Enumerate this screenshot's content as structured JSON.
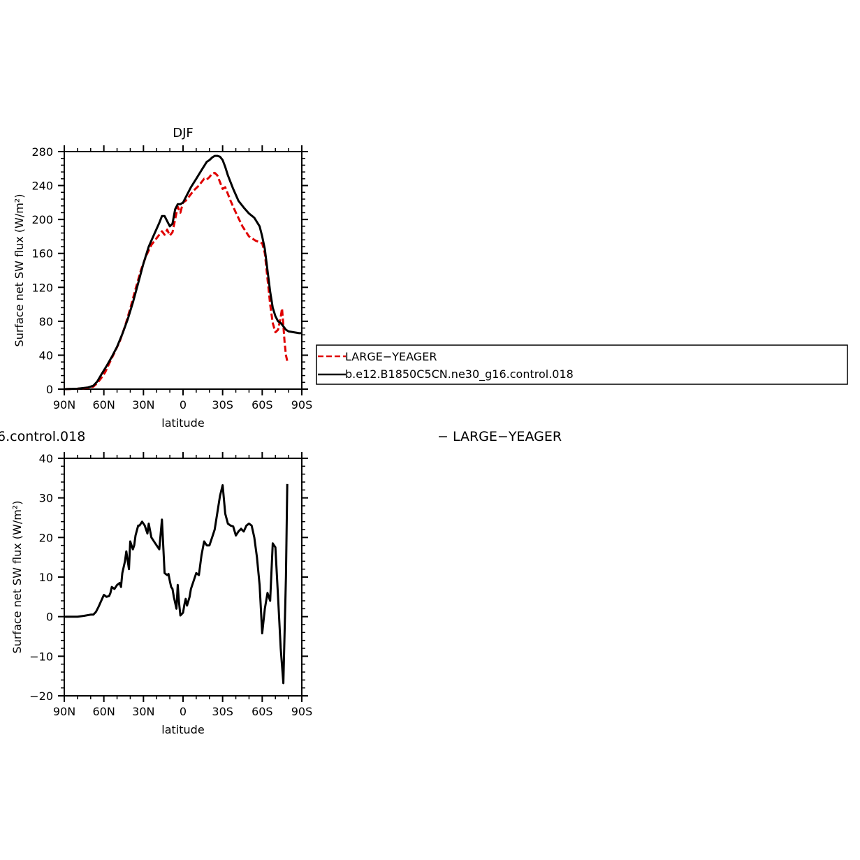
{
  "chart_data": [
    {
      "type": "line",
      "title": "DJF",
      "xlabel": "latitude",
      "ylabel": "Surface net SW flux (W/m²)",
      "xlim": [
        90,
        -90
      ],
      "ylim": [
        0,
        280
      ],
      "xticks": [
        {
          "value": 90,
          "label": "90N"
        },
        {
          "value": 60,
          "label": "60N"
        },
        {
          "value": 30,
          "label": "30N"
        },
        {
          "value": 0,
          "label": "0"
        },
        {
          "value": -30,
          "label": "30S"
        },
        {
          "value": -60,
          "label": "60S"
        },
        {
          "value": -90,
          "label": "90S"
        }
      ],
      "yticks": [
        0,
        40,
        80,
        120,
        160,
        200,
        240,
        280
      ],
      "legend_position": "right",
      "series": [
        {
          "name": "LARGE−YEAGER",
          "color": "#e00000",
          "dash": "dashed",
          "x": [
            90,
            80,
            72,
            68,
            65,
            62,
            59,
            56,
            52,
            48,
            44,
            40,
            36,
            32,
            28,
            24,
            20,
            16,
            14,
            12,
            10,
            8,
            6,
            4,
            2,
            0,
            -2,
            -4,
            -8,
            -12,
            -16,
            -18,
            -20,
            -22,
            -24,
            -26,
            -28,
            -30,
            -32,
            -34,
            -36,
            -40,
            -45,
            -50,
            -55,
            -60,
            -62,
            -64,
            -66,
            -68,
            -70,
            -72,
            -74,
            -75,
            -76,
            -77,
            -78,
            -79
          ],
          "y": [
            0,
            0.5,
            1.5,
            3,
            7,
            13,
            20,
            30,
            43,
            56,
            74,
            95,
            118,
            140,
            157,
            170,
            178,
            186,
            182,
            188,
            181,
            185,
            200,
            215,
            208,
            220,
            222,
            226,
            234,
            240,
            248,
            247,
            250,
            254,
            255,
            252,
            244,
            236,
            238,
            230,
            222,
            208,
            192,
            180,
            175,
            172,
            160,
            130,
            100,
            78,
            67,
            70,
            85,
            95,
            75,
            55,
            40,
            33
          ]
        },
        {
          "name": "b.e12.B1850C5CN.ne30_g16.control.018",
          "color": "#000000",
          "dash": "solid",
          "x": [
            90,
            80,
            72,
            68,
            65,
            62,
            58,
            54,
            50,
            46,
            42,
            38,
            34,
            30,
            26,
            22,
            18,
            16,
            14,
            12,
            10,
            8,
            6,
            4,
            2,
            0,
            -2,
            -6,
            -10,
            -14,
            -18,
            -20,
            -22,
            -24,
            -26,
            -28,
            -30,
            -32,
            -34,
            -38,
            -42,
            -46,
            -50,
            -54,
            -58,
            -60,
            -62,
            -64,
            -66,
            -68,
            -70,
            -72,
            -74,
            -76,
            -78,
            -80,
            -84,
            -88,
            -90
          ],
          "y": [
            0,
            0.5,
            2,
            4,
            9,
            17,
            27,
            38,
            50,
            65,
            82,
            102,
            125,
            148,
            168,
            182,
            196,
            204,
            204,
            198,
            192,
            195,
            212,
            218,
            218,
            220,
            226,
            238,
            248,
            258,
            268,
            270,
            273,
            275,
            275,
            274,
            270,
            262,
            252,
            236,
            222,
            214,
            207,
            202,
            192,
            180,
            165,
            140,
            115,
            96,
            86,
            80,
            78,
            74,
            70,
            68,
            67,
            66,
            66
          ]
        }
      ]
    },
    {
      "type": "line",
      "title": "6.control.018",
      "title_right": "− LARGE−YEAGER",
      "xlabel": "latitude",
      "ylabel": "Surface net SW flux (W/m²)",
      "xlim": [
        90,
        -90
      ],
      "ylim": [
        -20,
        40
      ],
      "xticks": [
        {
          "value": 90,
          "label": "90N"
        },
        {
          "value": 60,
          "label": "60N"
        },
        {
          "value": 30,
          "label": "30N"
        },
        {
          "value": 0,
          "label": "0"
        },
        {
          "value": -30,
          "label": "30S"
        },
        {
          "value": -60,
          "label": "60S"
        },
        {
          "value": -90,
          "label": "90S"
        }
      ],
      "yticks": [
        -20,
        -10,
        0,
        10,
        20,
        30,
        40
      ],
      "series": [
        {
          "color": "#000000",
          "dash": "solid",
          "x": [
            90,
            80,
            75,
            70,
            68,
            66,
            64,
            62,
            60,
            58,
            56,
            55,
            54,
            52,
            50,
            48,
            47,
            46,
            44,
            43,
            41,
            40,
            38,
            37,
            36,
            34,
            33,
            31,
            29,
            27,
            26,
            24,
            23,
            22,
            20,
            18,
            16,
            14,
            12,
            11,
            10,
            9,
            8,
            7,
            5,
            4,
            3,
            2,
            0,
            -1,
            -2,
            -3,
            -5,
            -6,
            -8,
            -10,
            -12,
            -14,
            -16,
            -18,
            -20,
            -22,
            -24,
            -28,
            -30,
            -32,
            -34,
            -36,
            -38,
            -40,
            -42,
            -44,
            -46,
            -48,
            -50,
            -52,
            -54,
            -56,
            -58,
            -60,
            -62,
            -64,
            -66,
            -68,
            -70,
            -72,
            -74,
            -76,
            -78,
            -79
          ],
          "y": [
            0,
            0,
            0.2,
            0.5,
            0.5,
            1.2,
            2.5,
            4,
            5.5,
            5,
            5.2,
            6,
            7.5,
            7,
            8,
            8.5,
            7.5,
            11,
            14,
            16.5,
            12,
            19,
            17,
            18,
            20.5,
            23,
            23,
            24,
            23,
            21,
            23.5,
            20,
            19.5,
            19,
            18,
            17,
            24.5,
            11,
            10.5,
            10.8,
            9,
            7.5,
            7,
            5,
            2,
            8,
            3.5,
            0.3,
            1,
            3,
            4.5,
            2.8,
            5,
            7,
            9,
            11,
            10.5,
            15.5,
            19,
            18,
            18,
            20,
            22,
            30.5,
            33.2,
            26,
            23.5,
            23,
            22.8,
            20.5,
            21.5,
            22.2,
            21.5,
            23,
            23.5,
            23,
            20,
            15,
            8,
            -4.2,
            2,
            6,
            4,
            18.5,
            17.5,
            5,
            -8,
            -16.8,
            10,
            33.5
          ]
        }
      ]
    }
  ]
}
